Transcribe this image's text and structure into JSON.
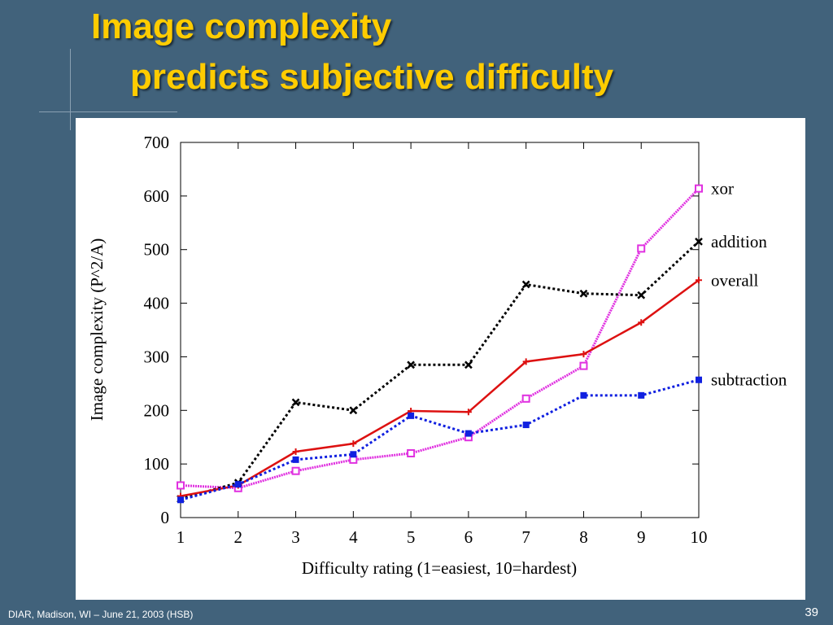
{
  "slide": {
    "title_line1": "Image complexity",
    "title_line2": "predicts subjective difficulty",
    "footer": "DIAR, Madison, WI – June 21, 2003 (HSB)",
    "page_number": "39"
  },
  "chart_data": {
    "type": "line",
    "title": "",
    "xlabel": "Difficulty rating (1=easiest, 10=hardest)",
    "ylabel": "Image complexity (P^2/A)",
    "x": [
      1,
      2,
      3,
      4,
      5,
      6,
      7,
      8,
      9,
      10
    ],
    "xlim": [
      1,
      10
    ],
    "ylim": [
      0,
      700
    ],
    "yticks": [
      0,
      100,
      200,
      300,
      400,
      500,
      600,
      700
    ],
    "legend": "line-end labels right",
    "series": [
      {
        "name": "xor",
        "color": "#e030e0",
        "style": "dotted",
        "marker": "square",
        "values": [
          60,
          55,
          87,
          108,
          120,
          150,
          222,
          283,
          502,
          614
        ]
      },
      {
        "name": "addition",
        "color": "#000000",
        "style": "dotted",
        "marker": "x",
        "values": [
          35,
          65,
          215,
          200,
          285,
          285,
          435,
          418,
          415,
          515
        ]
      },
      {
        "name": "overall",
        "color": "#dd1111",
        "style": "solid",
        "marker": "plus",
        "values": [
          40,
          60,
          123,
          138,
          199,
          197,
          291,
          305,
          364,
          443
        ]
      },
      {
        "name": "subtraction",
        "color": "#1020e0",
        "style": "dotted",
        "marker": "filled-square",
        "values": [
          33,
          62,
          108,
          118,
          190,
          157,
          173,
          228,
          228,
          257
        ]
      }
    ]
  }
}
